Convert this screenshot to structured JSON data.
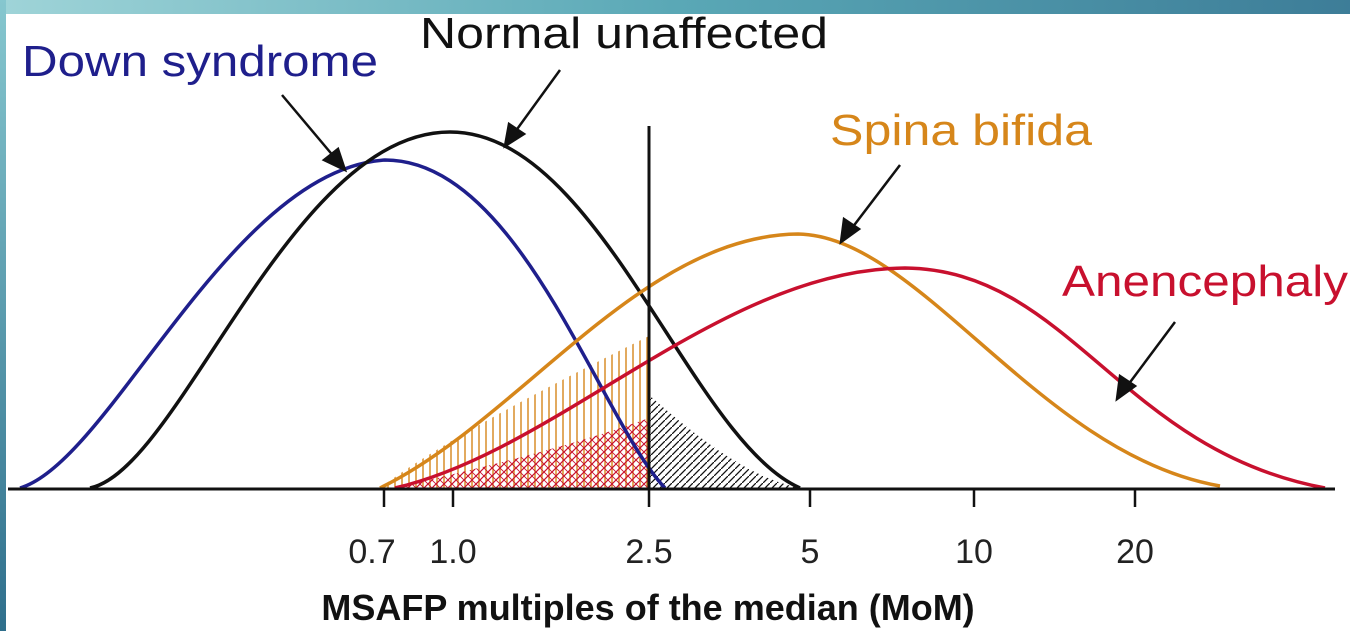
{
  "chart_data": {
    "type": "line",
    "xscale": "log",
    "x_ticks": [
      0.7,
      1.0,
      2.5,
      5,
      10,
      20
    ],
    "x_tick_labels": [
      "0.7",
      "1.0",
      "2.5",
      "5",
      "10",
      "20"
    ],
    "xlabel": "MSAFP multiples of the median (MoM)",
    "cutoff": 2.5,
    "series": [
      {
        "name": "Down syndrome",
        "color": "#1f1f8c",
        "peak_x": 0.7,
        "peak_height": 0.9
      },
      {
        "name": "Normal unaffected",
        "color": "#111111",
        "peak_x": 1.0,
        "peak_height": 1.0
      },
      {
        "name": "Spina bifida",
        "color": "#d6861a",
        "peak_x": 4.7,
        "peak_height": 0.72
      },
      {
        "name": "Anencephaly",
        "color": "#c8102e",
        "peak_x": 7.3,
        "peak_height": 0.62
      }
    ],
    "shaded_regions": [
      {
        "series": "Spina bifida",
        "range": "below 2.5",
        "pattern": "vertical hatch"
      },
      {
        "series": "Anencephaly",
        "range": "below 2.5",
        "pattern": "diagonal cross-hatch"
      },
      {
        "series": "Normal unaffected",
        "range": "above 2.5",
        "pattern": "diagonal hatch"
      }
    ]
  }
}
